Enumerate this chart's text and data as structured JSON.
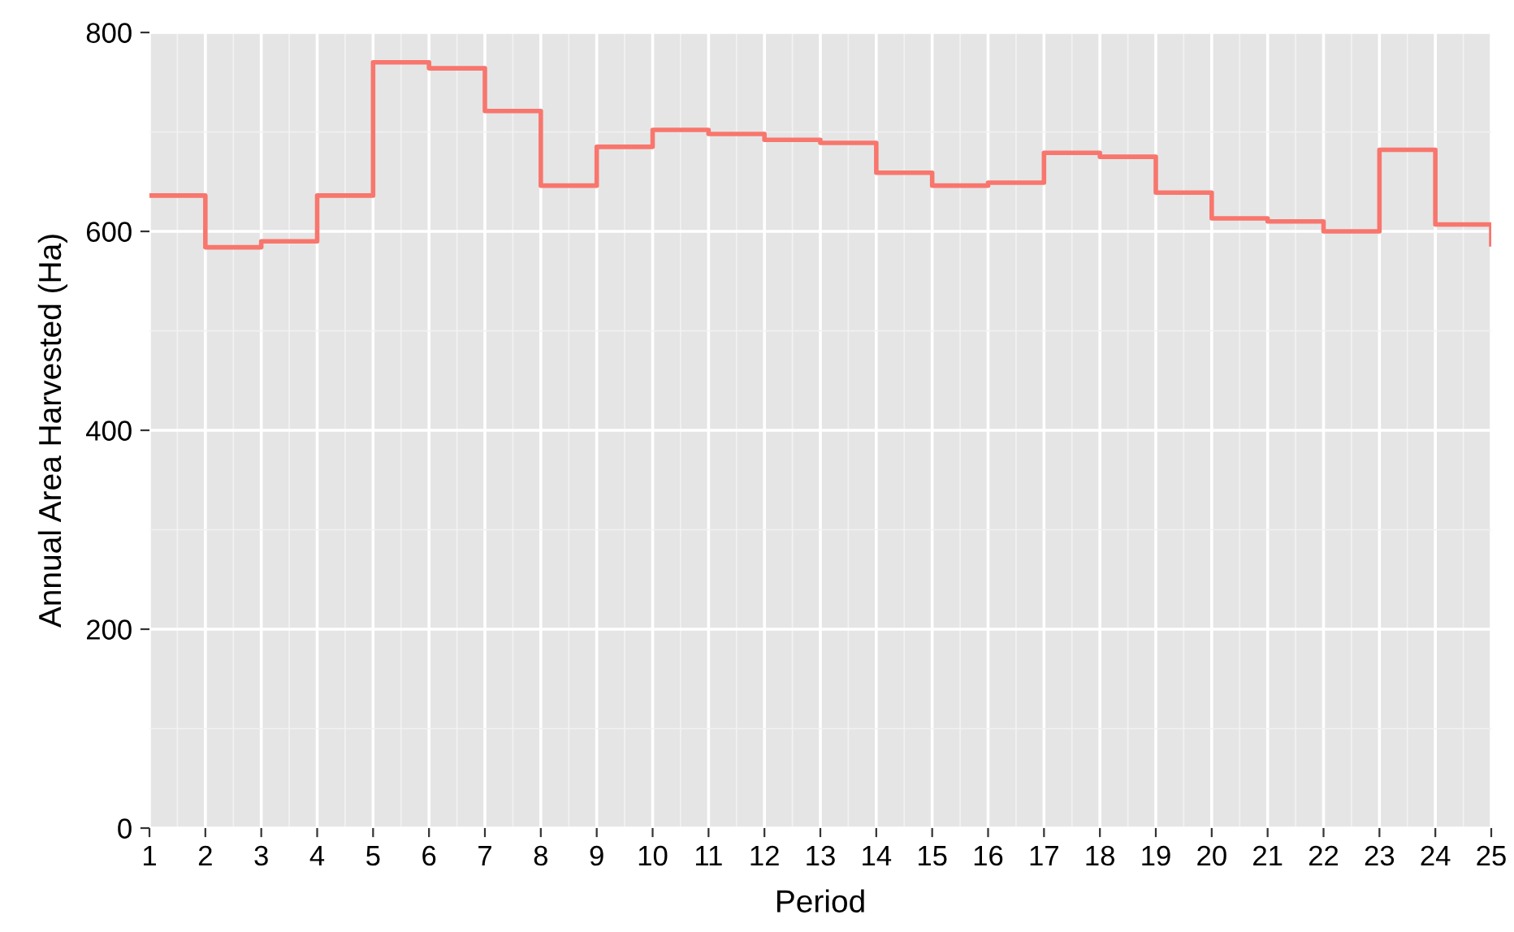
{
  "chart_data": {
    "type": "step",
    "xlabel": "Period",
    "ylabel": "Annual Area Harvested (Ha)",
    "x": [
      1,
      2,
      3,
      4,
      5,
      6,
      7,
      8,
      9,
      10,
      11,
      12,
      13,
      14,
      15,
      16,
      17,
      18,
      19,
      20,
      21,
      22,
      23,
      24,
      25
    ],
    "series": [
      {
        "color": "#f8766d",
        "values": [
          636,
          584,
          590,
          636,
          770,
          764,
          721,
          646,
          685,
          702,
          698,
          692,
          689,
          659,
          646,
          649,
          679,
          675,
          639,
          613,
          610,
          600,
          682,
          607,
          587
        ]
      }
    ],
    "xlim": [
      1,
      25
    ],
    "xticks": [
      1,
      2,
      3,
      4,
      5,
      6,
      7,
      8,
      9,
      10,
      11,
      12,
      13,
      14,
      15,
      16,
      17,
      18,
      19,
      20,
      21,
      22,
      23,
      24,
      25
    ],
    "ylim": [
      0,
      800
    ],
    "yticks": [
      0,
      200,
      400,
      600,
      800
    ],
    "grid": true
  }
}
